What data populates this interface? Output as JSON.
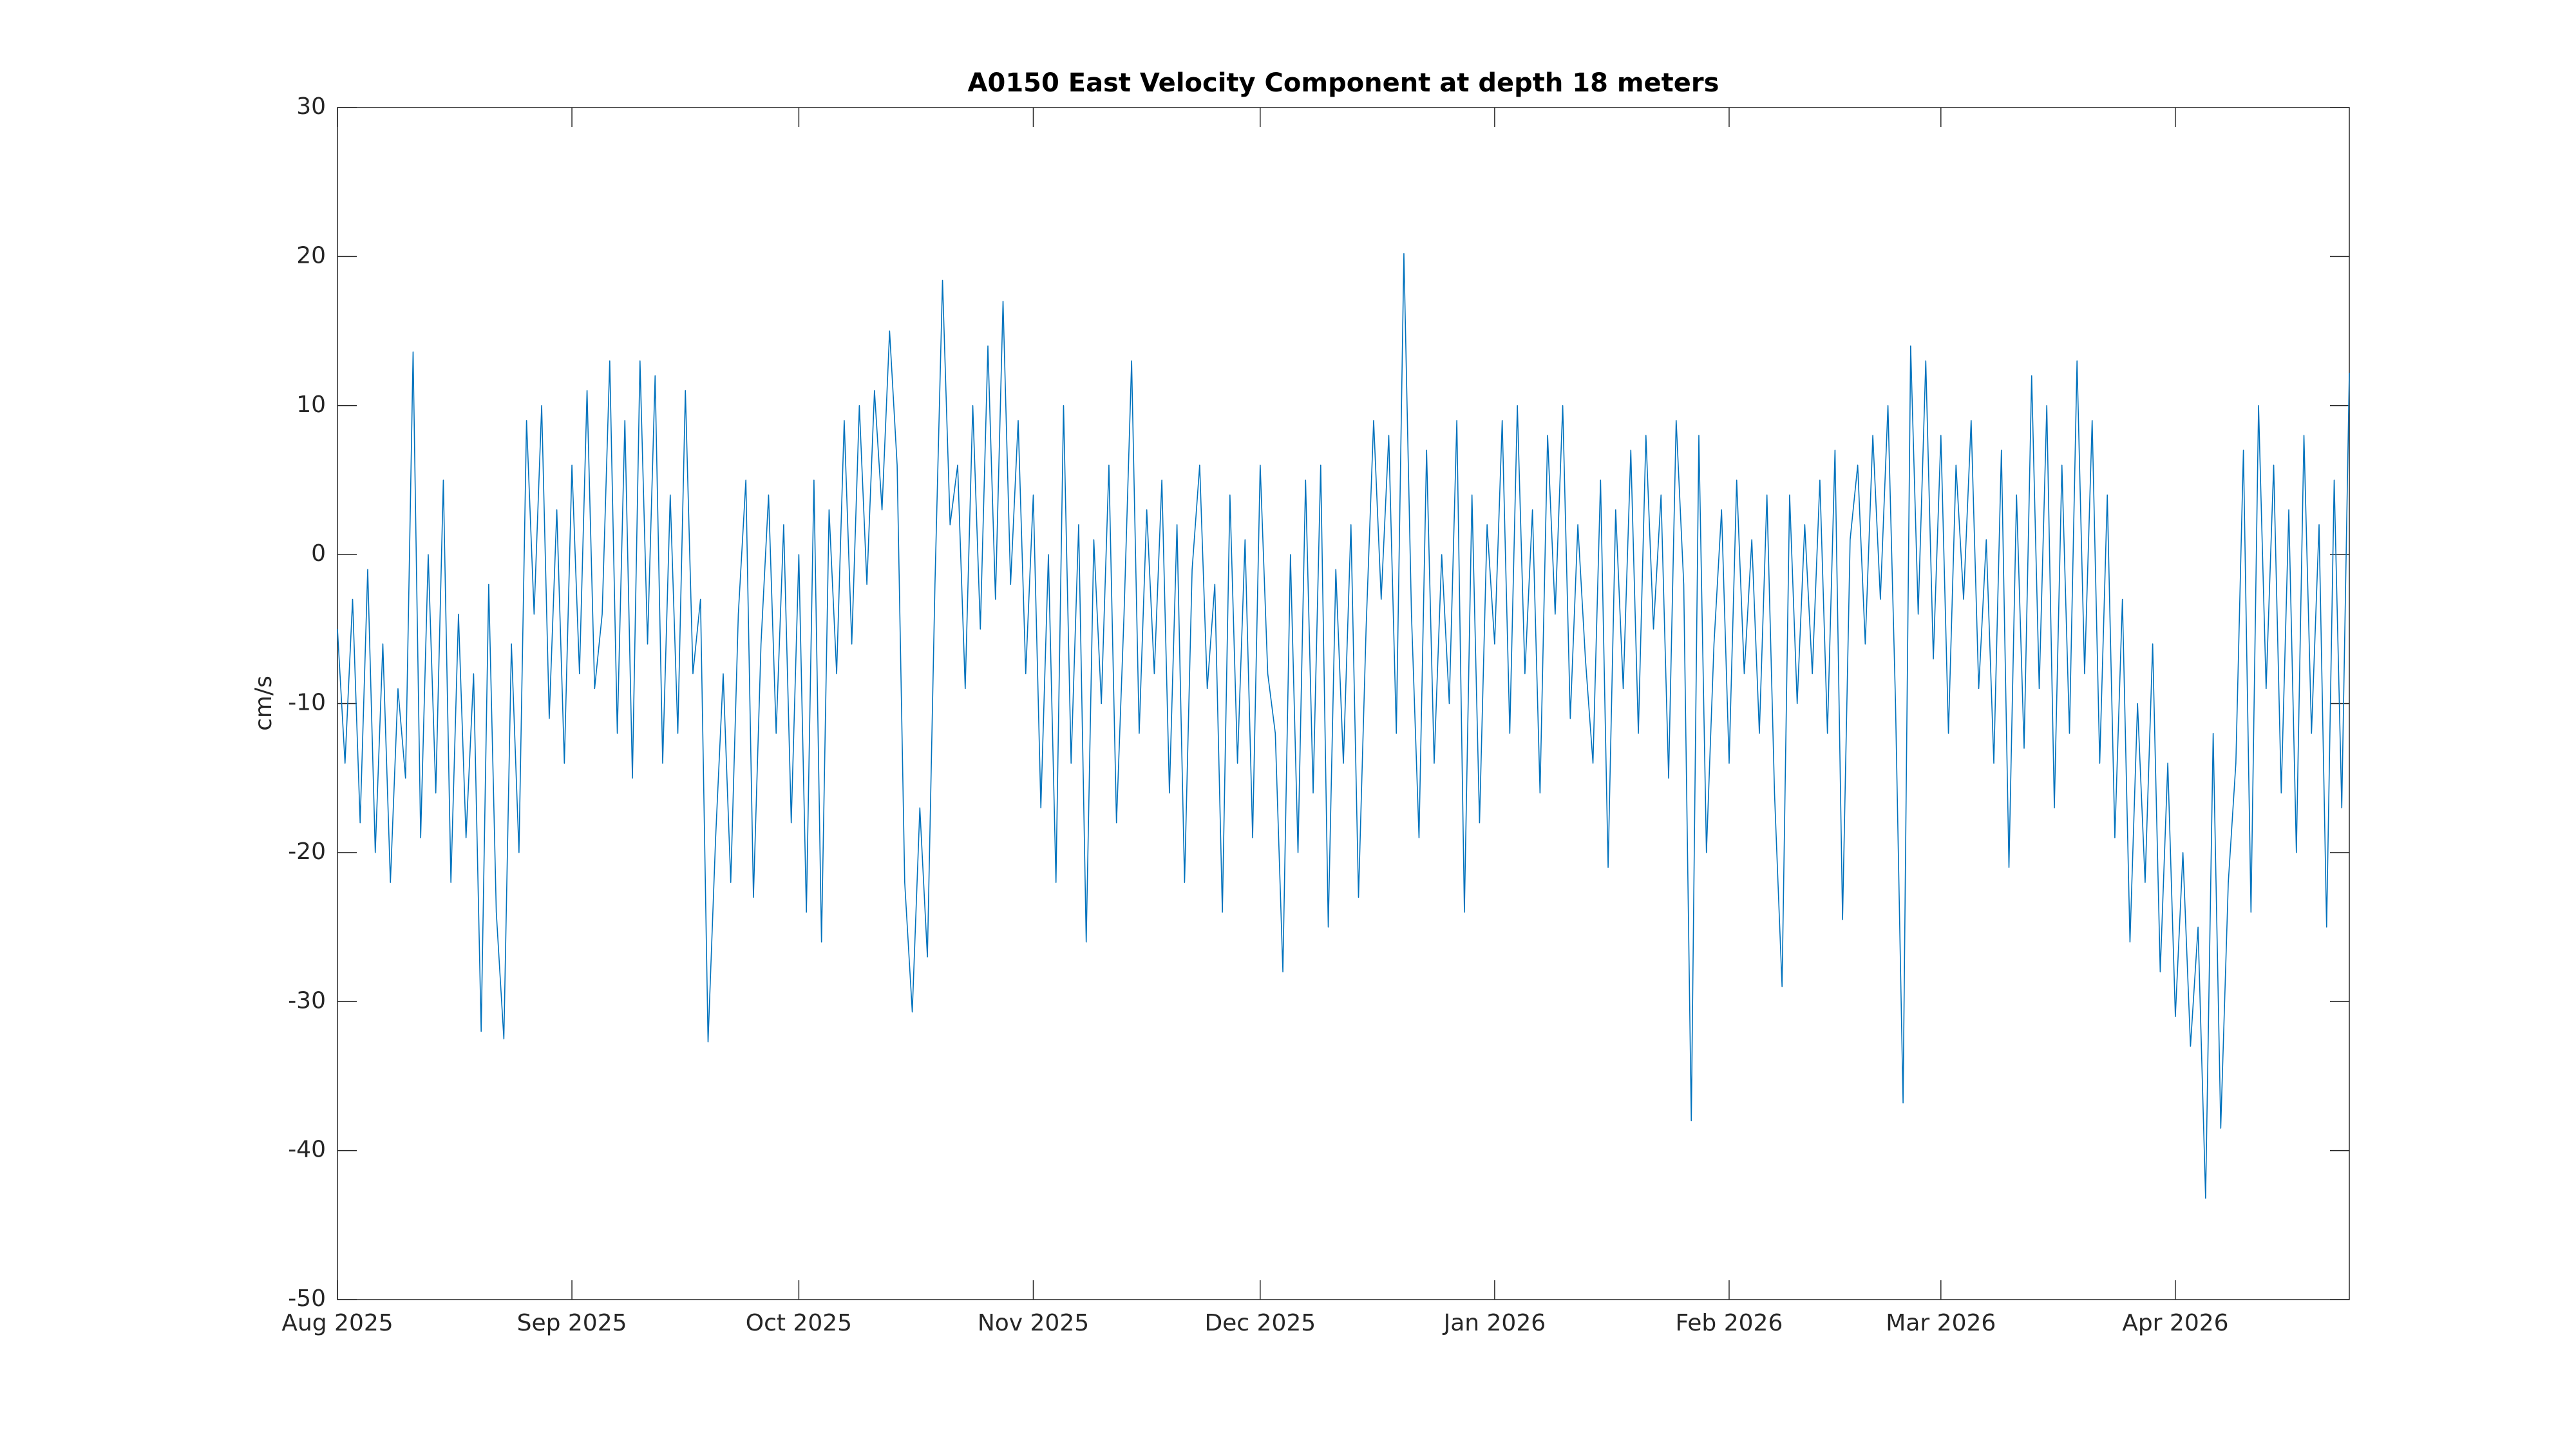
{
  "chart_data": {
    "type": "line",
    "title": "A0150 East Velocity Component at depth 18 meters",
    "ylabel": "cm/s",
    "x": [
      0,
      1,
      2,
      3,
      4,
      5,
      6,
      7,
      8,
      9,
      10,
      11,
      12,
      13,
      14,
      15,
      16,
      17,
      18,
      19,
      20,
      21,
      22,
      23,
      24,
      25,
      26,
      27,
      28,
      29,
      30,
      31,
      32,
      33,
      34,
      35,
      36,
      37,
      38,
      39,
      40,
      41,
      42,
      43,
      44,
      45,
      46,
      47,
      48,
      49,
      50,
      51,
      52,
      53,
      54,
      55,
      56,
      57,
      58,
      59,
      60,
      61,
      62,
      63,
      64,
      65,
      66,
      67,
      68,
      69,
      70,
      71,
      72,
      73,
      74,
      75,
      76,
      77,
      78,
      79,
      80,
      81,
      82,
      83,
      84,
      85,
      86,
      87,
      88,
      89,
      90,
      91,
      92,
      93,
      94,
      95,
      96,
      97,
      98,
      99,
      100,
      101,
      102,
      103,
      104,
      105,
      106,
      107,
      108,
      109,
      110,
      111,
      112,
      113,
      114,
      115,
      116,
      117,
      118,
      119,
      120,
      121,
      122,
      123,
      124,
      125,
      126,
      127,
      128,
      129,
      130,
      131,
      132,
      133,
      134,
      135,
      136,
      137,
      138,
      139,
      140,
      141,
      142,
      143,
      144,
      145,
      146,
      147,
      148,
      149,
      150,
      151,
      152,
      153,
      154,
      155,
      156,
      157,
      158,
      159,
      160,
      161,
      162,
      163,
      164,
      165,
      166,
      167,
      168,
      169,
      170,
      171,
      172,
      173,
      174,
      175,
      176,
      177,
      178,
      179,
      180,
      181,
      182,
      183,
      184,
      185,
      186,
      187,
      188,
      189,
      190,
      191,
      192,
      193,
      194,
      195,
      196,
      197,
      198,
      199,
      200,
      201,
      202,
      203,
      204,
      205,
      206,
      207,
      208,
      209,
      210,
      211,
      212,
      213,
      214,
      215,
      216,
      217,
      218,
      219,
      220,
      221,
      222,
      223,
      224,
      225,
      226,
      227,
      228,
      229,
      230,
      231,
      232,
      233,
      234,
      235,
      236,
      237,
      238,
      239,
      240,
      241,
      242,
      243,
      244,
      245,
      246,
      247,
      248,
      249,
      250,
      251,
      252,
      253,
      254,
      255,
      256,
      257,
      258,
      259,
      260,
      261,
      262,
      263,
      264,
      265,
      266
    ],
    "series": [
      {
        "color": "#0072bd",
        "values": [
          -5,
          -14,
          -3,
          -18,
          -1,
          -20,
          -6,
          -22,
          -9,
          -15,
          13.6,
          -19,
          0,
          -16,
          5,
          -22,
          -4,
          -19,
          -8,
          -32,
          -2,
          -24,
          -32.5,
          -6,
          -20,
          9,
          -4,
          10,
          -11,
          3,
          -14,
          6,
          -8,
          11,
          -9,
          -4,
          13,
          -12,
          9,
          -15,
          13,
          -6,
          12,
          -14,
          4,
          -12,
          11,
          -8,
          -3,
          -32.7,
          -19,
          -8,
          -22,
          -4,
          5,
          -23,
          -6,
          4,
          -12,
          2,
          -18,
          0,
          -24,
          5,
          -26,
          3,
          -8,
          9,
          -6,
          10,
          -2,
          11,
          3,
          15,
          6,
          -22,
          -30.7,
          -17,
          -27,
          -2,
          18.4,
          2,
          6,
          -9,
          10,
          -5,
          14,
          -3,
          17,
          -2,
          9,
          -8,
          4,
          -17,
          0,
          -22,
          10,
          -14,
          2,
          -26,
          1,
          -10,
          6,
          -18,
          -4,
          13,
          -12,
          3,
          -8,
          5,
          -16,
          2,
          -22,
          -1,
          6,
          -9,
          -2,
          -24,
          4,
          -14,
          1,
          -19,
          6,
          -8,
          -12,
          -28,
          0,
          -20,
          5,
          -16,
          6,
          -25,
          -1,
          -14,
          2,
          -23,
          -5,
          9,
          -3,
          8,
          -12,
          20.2,
          -4,
          -19,
          7,
          -14,
          0,
          -10,
          9,
          -24,
          4,
          -18,
          2,
          -6,
          9,
          -12,
          10,
          -8,
          3,
          -16,
          8,
          -4,
          10,
          -11,
          2,
          -7,
          -14,
          5,
          -21,
          3,
          -9,
          7,
          -12,
          8,
          -5,
          4,
          -15,
          9,
          -2,
          -38,
          8,
          -20,
          -6,
          3,
          -14,
          5,
          -8,
          1,
          -12,
          4,
          -16,
          -29,
          4,
          -10,
          2,
          -8,
          5,
          -12,
          7,
          -24.5,
          1,
          6,
          -6,
          8,
          -3,
          10,
          -10,
          -36.8,
          14,
          -4,
          13,
          -7,
          8,
          -12,
          6,
          -3,
          9,
          -9,
          1,
          -14,
          7,
          -21,
          4,
          -13,
          12,
          -9,
          10,
          -17,
          6,
          -12,
          13,
          -8,
          9,
          -14,
          4,
          -19,
          -3,
          -26,
          -10,
          -22,
          -6,
          -28,
          -14,
          -31,
          -20,
          -33,
          -25,
          -43.2,
          -12,
          -38.5,
          -22,
          -14,
          7,
          -24,
          10,
          -9,
          6,
          -16,
          3,
          -20,
          8,
          -12,
          2,
          -25,
          5,
          -17,
          12.2
        ]
      }
    ],
    "xlim": [
      0,
      266
    ],
    "xticks": [
      {
        "value": 0,
        "label": "Aug 2025"
      },
      {
        "value": 31,
        "label": "Sep 2025"
      },
      {
        "value": 61,
        "label": "Oct 2025"
      },
      {
        "value": 92,
        "label": "Nov 2025"
      },
      {
        "value": 122,
        "label": "Dec 2025"
      },
      {
        "value": 153,
        "label": "Jan 2026"
      },
      {
        "value": 184,
        "label": "Feb 2026"
      },
      {
        "value": 212,
        "label": "Mar 2026"
      },
      {
        "value": 243,
        "label": "Apr 2026"
      }
    ],
    "ylim": [
      -50,
      30
    ],
    "yticks": [
      -50,
      -40,
      -30,
      -20,
      -10,
      0,
      10,
      20,
      30
    ]
  }
}
